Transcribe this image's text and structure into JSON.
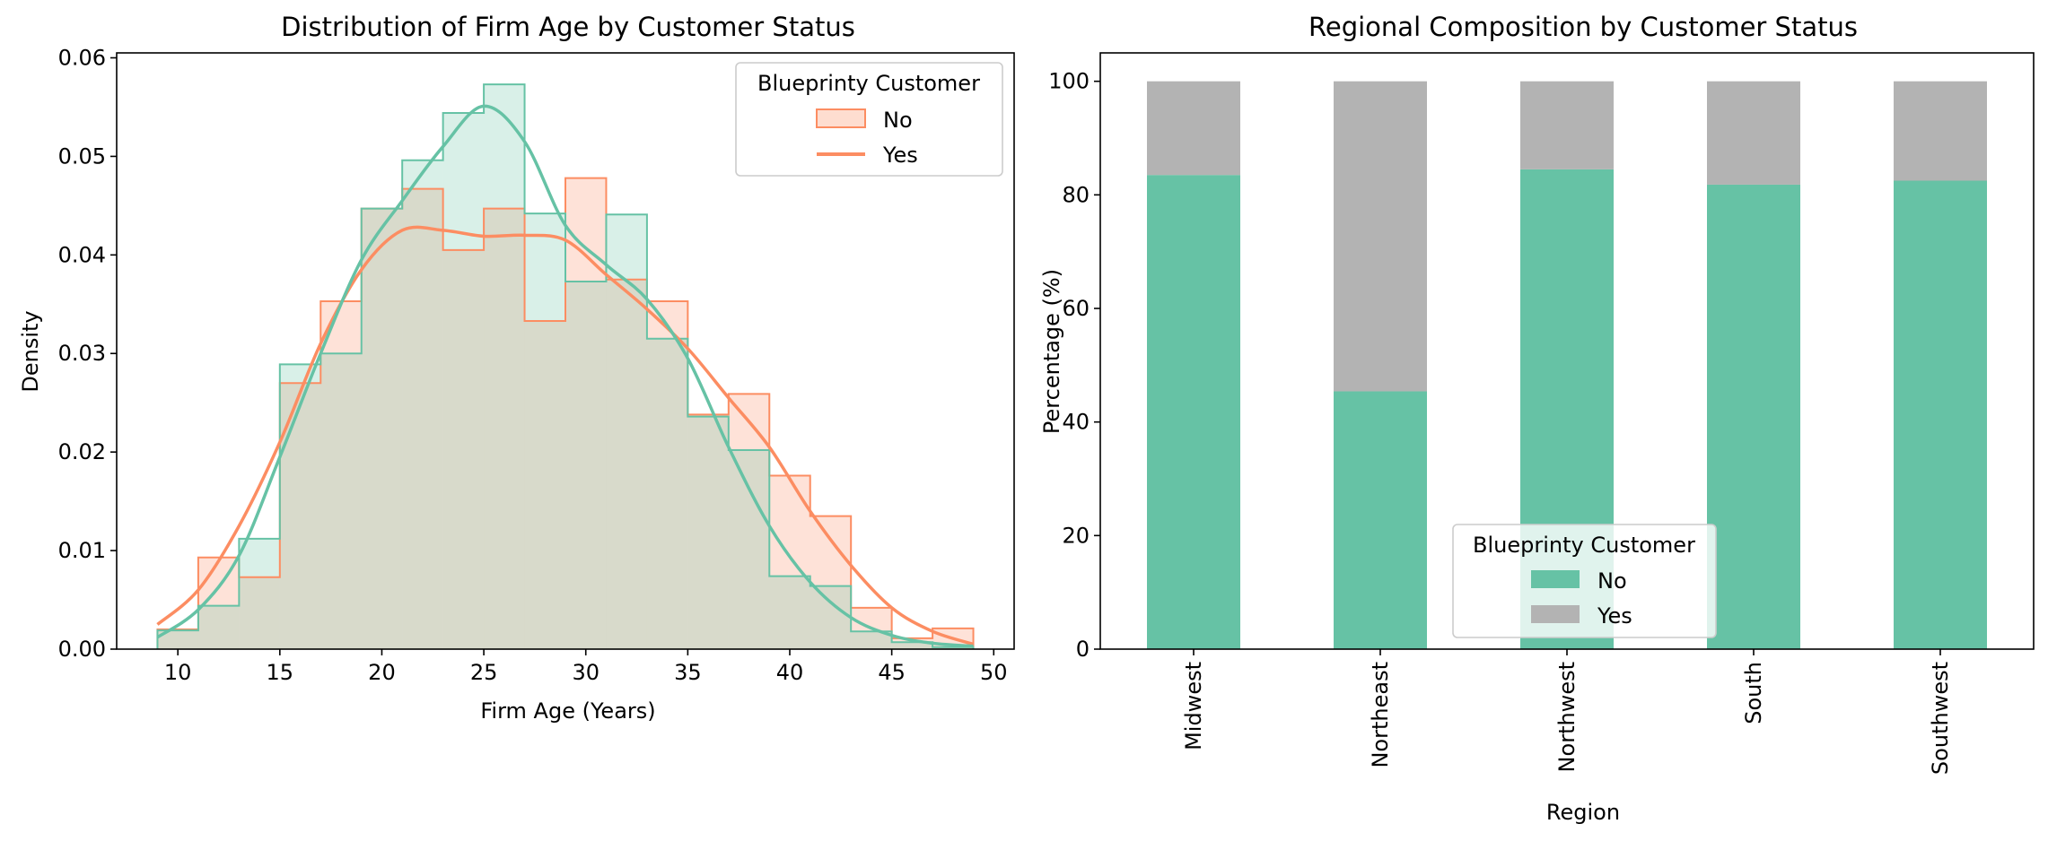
{
  "colors": {
    "no": "#66c2a5",
    "yes": "#fc8d62",
    "yes_bar": "#b3b3b3",
    "axis": "#000000",
    "legend_frame": "#cccccc"
  },
  "chart_data": [
    {
      "type": "histogram",
      "title": "Distribution of Firm Age by Customer Status",
      "xlabel": "Firm Age (Years)",
      "ylabel": "Density",
      "xlim": [
        7.0,
        51.0
      ],
      "ylim": [
        0.0,
        0.0605
      ],
      "xticks": [
        10,
        15,
        20,
        25,
        30,
        35,
        40,
        45,
        50
      ],
      "xtick_labels": [
        "10",
        "15",
        "20",
        "25",
        "30",
        "35",
        "40",
        "45",
        "50"
      ],
      "yticks": [
        0.0,
        0.01,
        0.02,
        0.03,
        0.04,
        0.05,
        0.06
      ],
      "ytick_labels": [
        "0.00",
        "0.01",
        "0.02",
        "0.03",
        "0.04",
        "0.05",
        "0.06"
      ],
      "grid": false,
      "legend": {
        "title": "Blueprinty Customer",
        "placement": "upper right",
        "entries": [
          "No",
          "Yes"
        ]
      },
      "bin_edges": [
        9,
        11,
        13,
        15,
        17,
        19,
        21,
        23,
        25,
        27,
        29,
        31,
        33,
        35,
        37,
        39,
        41,
        43,
        45,
        47,
        49
      ],
      "series": [
        {
          "name": "Yes",
          "color_key": "yes",
          "density": [
            0.002,
            0.0093,
            0.0073,
            0.027,
            0.0353,
            0.0447,
            0.0467,
            0.0405,
            0.0447,
            0.0333,
            0.0478,
            0.0375,
            0.0353,
            0.0238,
            0.0259,
            0.0176,
            0.0135,
            0.0042,
            0.0011,
            0.0021
          ],
          "kde": {
            "x": [
              9,
              11,
              13,
              15,
              17,
              19,
              21,
              23,
              25,
              27,
              29,
              31,
              33,
              35,
              37,
              39,
              41,
              43,
              45,
              47,
              49
            ],
            "y": [
              0.0025,
              0.006,
              0.0125,
              0.021,
              0.031,
              0.0385,
              0.0425,
              0.0425,
              0.0419,
              0.042,
              0.0415,
              0.038,
              0.0345,
              0.0305,
              0.0255,
              0.0205,
              0.014,
              0.0085,
              0.0042,
              0.0018,
              0.0005
            ]
          }
        },
        {
          "name": "No",
          "color_key": "no",
          "density": [
            0.0019,
            0.0044,
            0.0112,
            0.0289,
            0.03,
            0.0447,
            0.0496,
            0.0544,
            0.0573,
            0.0442,
            0.0373,
            0.0441,
            0.0315,
            0.0236,
            0.0202,
            0.0074,
            0.0064,
            0.0018,
            0.0007,
            0.0002
          ],
          "kde": {
            "x": [
              9,
              11,
              13,
              15,
              17,
              19,
              21,
              23,
              25,
              27,
              29,
              31,
              33,
              35,
              37,
              39,
              41,
              43,
              45,
              47,
              49
            ],
            "y": [
              0.0012,
              0.004,
              0.0095,
              0.0195,
              0.03,
              0.0395,
              0.0455,
              0.051,
              0.0551,
              0.0515,
              0.043,
              0.039,
              0.0355,
              0.0295,
              0.0205,
              0.0125,
              0.0068,
              0.0032,
              0.0014,
              0.0006,
              0.0003
            ]
          }
        }
      ]
    },
    {
      "type": "bar",
      "stacked": true,
      "title": "Regional Composition by Customer Status",
      "xlabel": "Region",
      "ylabel": "Percentage (%)",
      "categories": [
        "Midwest",
        "Northeast",
        "Northwest",
        "South",
        "Southwest"
      ],
      "ylim": [
        0,
        105
      ],
      "yticks": [
        0,
        20,
        40,
        60,
        80,
        100
      ],
      "ytick_labels": [
        "0",
        "20",
        "40",
        "60",
        "80",
        "100"
      ],
      "grid": false,
      "legend": {
        "title": "Blueprinty Customer",
        "placement": "lower center",
        "entries": [
          "No",
          "Yes"
        ]
      },
      "series": [
        {
          "name": "No",
          "color_key": "no",
          "values": [
            83.5,
            45.4,
            84.5,
            81.8,
            82.5
          ]
        },
        {
          "name": "Yes",
          "color_key": "yes_bar",
          "values": [
            16.5,
            54.6,
            15.5,
            18.2,
            17.5
          ]
        }
      ]
    }
  ]
}
